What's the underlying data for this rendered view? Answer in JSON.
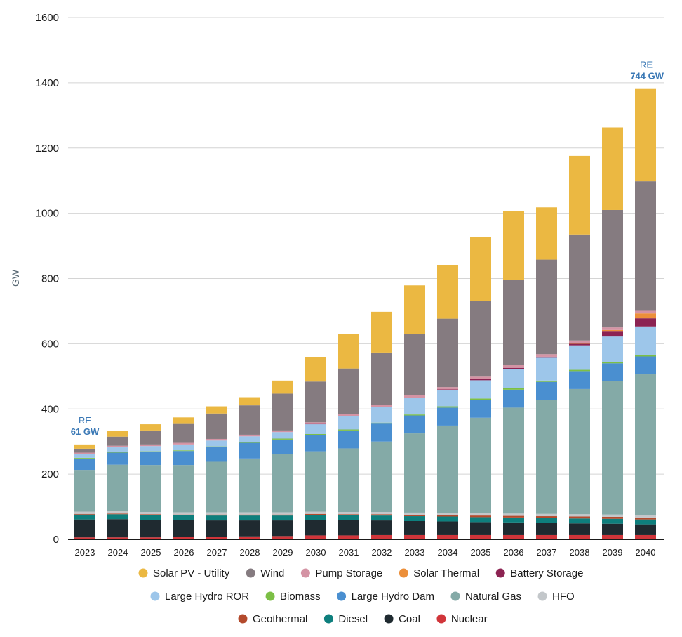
{
  "chart_data": {
    "type": "bar",
    "stacked": true,
    "title": "",
    "xlabel": "",
    "ylabel": "GW",
    "ylim": [
      0,
      1600
    ],
    "yticks": [
      0,
      200,
      400,
      600,
      800,
      1000,
      1200,
      1400,
      1600
    ],
    "grid": true,
    "legend_position": "bottom",
    "categories": [
      "2023",
      "2024",
      "2025",
      "2026",
      "2027",
      "2028",
      "2029",
      "2030",
      "2031",
      "2032",
      "2033",
      "2034",
      "2035",
      "2036",
      "2037",
      "2038",
      "2039",
      "2040"
    ],
    "series": [
      {
        "name": "Nuclear",
        "color": "#d1353a",
        "values": [
          6,
          6,
          6,
          7,
          8,
          9,
          10,
          12,
          12,
          13,
          13,
          13,
          13,
          13,
          13,
          13,
          13,
          13
        ]
      },
      {
        "name": "Coal",
        "color": "#1f2a30",
        "values": [
          55,
          56,
          54,
          52,
          50,
          49,
          48,
          48,
          47,
          45,
          43,
          42,
          40,
          39,
          38,
          36,
          35,
          33
        ]
      },
      {
        "name": "Diesel",
        "color": "#0e7f7d",
        "values": [
          15,
          15,
          15,
          15,
          15,
          15,
          15,
          15,
          15,
          15,
          15,
          15,
          15,
          15,
          15,
          15,
          15,
          15
        ]
      },
      {
        "name": "Geothermal",
        "color": "#b34a2c",
        "values": [
          2,
          2,
          2,
          2,
          3,
          3,
          3,
          3,
          3,
          4,
          4,
          4,
          5,
          5,
          5,
          6,
          6,
          6
        ]
      },
      {
        "name": "HFO",
        "color": "#c3c7ca",
        "values": [
          7,
          7,
          7,
          7,
          7,
          7,
          7,
          7,
          7,
          7,
          7,
          7,
          7,
          7,
          7,
          7,
          7,
          7
        ]
      },
      {
        "name": "Natural Gas",
        "color": "#84aaa7",
        "values": [
          128,
          143,
          144,
          145,
          155,
          165,
          178,
          185,
          195,
          216,
          243,
          268,
          293,
          325,
          350,
          384,
          409,
          432
        ]
      },
      {
        "name": "Large Hydro Dam",
        "color": "#4a8fd0",
        "values": [
          35,
          37,
          40,
          43,
          45,
          48,
          45,
          50,
          55,
          55,
          55,
          55,
          55,
          55,
          55,
          55,
          55,
          55
        ]
      },
      {
        "name": "Biomass",
        "color": "#7cbf45",
        "values": [
          2,
          2,
          2,
          2,
          2,
          2,
          3,
          3,
          3,
          3,
          3,
          4,
          4,
          4,
          4,
          4,
          4,
          4
        ]
      },
      {
        "name": "Large Hydro ROR",
        "color": "#9dc6ea",
        "values": [
          12,
          14,
          16,
          18,
          18,
          18,
          20,
          30,
          40,
          48,
          50,
          50,
          56,
          60,
          70,
          75,
          78,
          88
        ]
      },
      {
        "name": "Battery Storage",
        "color": "#8c2352",
        "values": [
          0,
          0,
          0,
          0,
          0,
          0,
          0,
          1,
          1,
          1,
          2,
          2,
          3,
          3,
          3,
          5,
          15,
          25
        ]
      },
      {
        "name": "Solar Thermal",
        "color": "#ec8f3a",
        "values": [
          0,
          0,
          0,
          0,
          0,
          0,
          0,
          0,
          0,
          0,
          0,
          0,
          0,
          0,
          0,
          2,
          5,
          15
        ]
      },
      {
        "name": "Pump Storage",
        "color": "#d493a4",
        "values": [
          4,
          5,
          5,
          5,
          5,
          5,
          5,
          5,
          6,
          6,
          7,
          7,
          8,
          8,
          8,
          8,
          8,
          8
        ]
      },
      {
        "name": "Wind",
        "color": "#857b80",
        "values": [
          12,
          28,
          43,
          58,
          78,
          90,
          113,
          125,
          140,
          160,
          187,
          210,
          233,
          262,
          290,
          325,
          360,
          397
        ]
      },
      {
        "name": "Solar PV - Utility",
        "color": "#ebb842",
        "values": [
          13,
          18,
          19,
          20,
          22,
          25,
          40,
          75,
          105,
          125,
          150,
          165,
          195,
          210,
          160,
          241,
          253,
          283
        ]
      }
    ],
    "annotations": [
      {
        "category": "2023",
        "label": "RE",
        "value_text": "61 GW"
      },
      {
        "category": "2040",
        "label": "RE",
        "value_text": "744 GW"
      }
    ],
    "legend_rows": [
      [
        "Solar PV - Utility",
        "Wind",
        "Pump Storage",
        "Solar Thermal",
        "Battery Storage"
      ],
      [
        "Large Hydro ROR",
        "Biomass",
        "Large Hydro Dam",
        "Natural Gas",
        "HFO"
      ],
      [
        "Geothermal",
        "Diesel",
        "Coal",
        "Nuclear"
      ]
    ]
  }
}
